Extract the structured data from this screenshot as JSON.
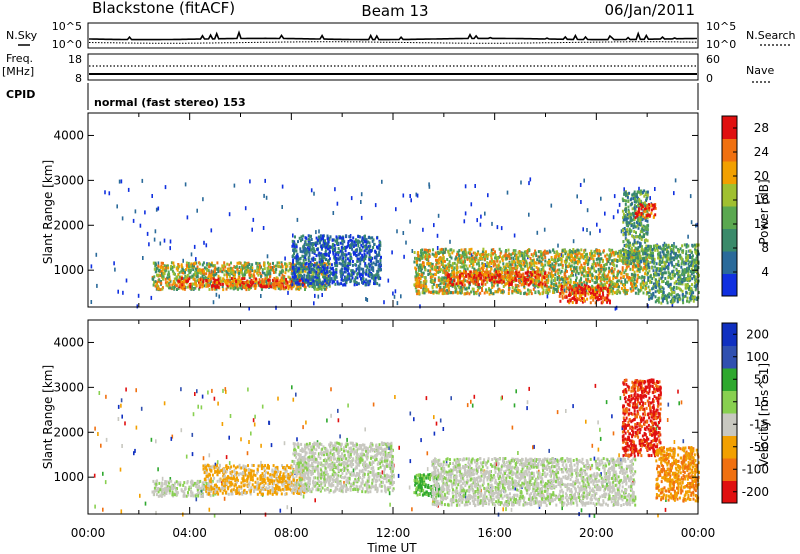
{
  "header": {
    "station": "Blackstone (fitACF)",
    "beam": "Beam 13",
    "date": "06/Jan/2011"
  },
  "noise_panel": {
    "left_label": "N.Sky",
    "right_label": "N.Search",
    "left_ticks": [
      "10^5",
      "10^0"
    ],
    "right_ticks": [
      "10^5",
      "10^0"
    ]
  },
  "freq_panel": {
    "left_label_1": "Freq.",
    "left_label_2": "[MHz]",
    "right_label": "Nave",
    "left_ticks": [
      "18",
      "8"
    ],
    "right_ticks": [
      "60",
      "0"
    ]
  },
  "cpid": {
    "label": "CPID",
    "value": "normal (fast stereo) 153"
  },
  "colors": {
    "power_scale": [
      "#1030e0",
      "#2a6a9a",
      "#3a8a6a",
      "#5aa850",
      "#a0c030",
      "#f2a000",
      "#f07010",
      "#e01010"
    ],
    "velocity_scale": [
      "#1030c0",
      "#3050b0",
      "#2ea82e",
      "#88d050",
      "#c8c8c0",
      "#f2a000",
      "#f07010",
      "#e01010"
    ]
  },
  "chart_data": [
    {
      "type": "heatmap",
      "panel": "power",
      "ylabel": "Slant Range [km]",
      "xlabel": "Time UT",
      "xlim": [
        0,
        24
      ],
      "ylim": [
        180,
        4500
      ],
      "x_ticks": [
        "00:00",
        "04:00",
        "08:00",
        "12:00",
        "16:00",
        "20:00",
        "00:00"
      ],
      "y_ticks": [
        1000,
        2000,
        3000,
        4000
      ],
      "colorbar": {
        "label": "Power [dB]",
        "ticks": [
          4,
          8,
          12,
          16,
          20,
          24,
          28
        ],
        "range": [
          0,
          30
        ]
      },
      "echo_regions": [
        {
          "t_start": 2.5,
          "t_end": 9.5,
          "range_low": 600,
          "range_high": 1200,
          "level": "mid-high"
        },
        {
          "t_start": 3.5,
          "t_end": 8.5,
          "range_low": 650,
          "range_high": 850,
          "level": "high"
        },
        {
          "t_start": 8.0,
          "t_end": 11.5,
          "range_low": 700,
          "range_high": 1800,
          "level": "low"
        },
        {
          "t_start": 12.8,
          "t_end": 22.0,
          "range_low": 500,
          "range_high": 1500,
          "level": "mid-high"
        },
        {
          "t_start": 14.0,
          "t_end": 18.0,
          "range_low": 700,
          "range_high": 1000,
          "level": "high"
        },
        {
          "t_start": 18.5,
          "t_end": 20.5,
          "range_low": 300,
          "range_high": 700,
          "level": "high"
        },
        {
          "t_start": 21.0,
          "t_end": 22.0,
          "range_low": 1200,
          "range_high": 2800,
          "level": "mid"
        },
        {
          "t_start": 21.5,
          "t_end": 22.3,
          "range_low": 2200,
          "range_high": 2500,
          "level": "high"
        },
        {
          "t_start": 22.0,
          "t_end": 24.0,
          "range_low": 300,
          "range_high": 1600,
          "level": "mid"
        }
      ]
    },
    {
      "type": "heatmap",
      "panel": "velocity",
      "ylabel": "Slant Range [km]",
      "xlabel": "Time UT",
      "xlim": [
        0,
        24
      ],
      "ylim": [
        180,
        4500
      ],
      "x_ticks": [
        "00:00",
        "04:00",
        "08:00",
        "12:00",
        "16:00",
        "20:00",
        "00:00"
      ],
      "y_ticks": [
        1000,
        2000,
        3000,
        4000
      ],
      "colorbar": {
        "label": "Velocity [m s^-1]",
        "ticks": [
          200,
          100,
          50,
          15,
          -15,
          -50,
          -100,
          -200
        ]
      },
      "echo_regions": [
        {
          "t_start": 2.5,
          "t_end": 5.0,
          "range_low": 600,
          "range_high": 950,
          "level": "gray"
        },
        {
          "t_start": 4.5,
          "t_end": 8.5,
          "range_low": 650,
          "range_high": 1300,
          "level": "orange-light"
        },
        {
          "t_start": 8.0,
          "t_end": 12.0,
          "range_low": 700,
          "range_high": 1800,
          "level": "gray"
        },
        {
          "t_start": 12.8,
          "t_end": 13.8,
          "range_low": 600,
          "range_high": 1100,
          "level": "green"
        },
        {
          "t_start": 13.5,
          "t_end": 21.5,
          "range_low": 400,
          "range_high": 1450,
          "level": "gray"
        },
        {
          "t_start": 21.0,
          "t_end": 22.5,
          "range_low": 1500,
          "range_high": 3200,
          "level": "red"
        },
        {
          "t_start": 22.3,
          "t_end": 24.0,
          "range_low": 500,
          "range_high": 1700,
          "level": "orange"
        }
      ]
    }
  ]
}
